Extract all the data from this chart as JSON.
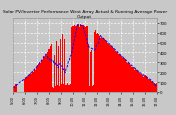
{
  "title": "Solar PV/Inverter Performance West Array Actual & Running Average Power Output",
  "bg_color": "#c8c8c8",
  "plot_bg": "#c8c8c8",
  "bar_color": "#ff0000",
  "line_color": "#0000ff",
  "grid_color": "#ffffff",
  "ymax": 750,
  "ymin": 0,
  "num_points": 144,
  "title_fontsize": 3.2,
  "axis_fontsize": 2.8,
  "yticks": [
    0,
    100,
    200,
    300,
    400,
    500,
    600,
    700
  ],
  "ytick_labels": [
    "0",
    "100",
    "200",
    "300",
    "400",
    "500",
    "600",
    "700"
  ],
  "xtick_labels": [
    "5:00",
    "6:00",
    "7:00",
    "8:00",
    "9:00",
    "10:00",
    "11:00",
    "12:00",
    "13:00",
    "14:00",
    "15:00",
    "16:00",
    "17:00"
  ]
}
